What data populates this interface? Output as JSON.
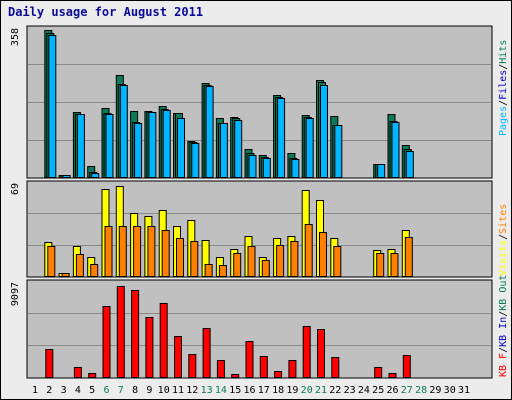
{
  "title": "Daily usage for August 2011",
  "colors": {
    "pages": "#00b4ff",
    "files": "#0a7a5a",
    "hits": "#0a7a5a",
    "visits": "#ffff00",
    "sites": "#ff8000",
    "kb_f": "#ff0000",
    "kb_in": "#0000c0",
    "kb_out": "#0a7a5a",
    "plot_bg": "#c0c0c0",
    "weekend_label": "#0a7a5a",
    "weekday_label": "#000000"
  },
  "chart_data": [
    {
      "type": "bar",
      "panel": "hits",
      "scale_label": "358",
      "legend": [
        {
          "text": "Pages",
          "color": "#00b4ff"
        },
        {
          "text": "Files",
          "color": "#0000c0"
        },
        {
          "text": "Hits",
          "color": "#0a7a5a"
        }
      ],
      "ylim": [
        0,
        358
      ],
      "series": [
        {
          "name": "Hits",
          "values": [
            0,
            358,
            8,
            160,
            30,
            170,
            250,
            163,
            163,
            175,
            158,
            90,
            230,
            145,
            148,
            70,
            55,
            200,
            60,
            152,
            238,
            150,
            0,
            0,
            35,
            155,
            80,
            0,
            0,
            0,
            0
          ]
        },
        {
          "name": "Files",
          "values": [
            0,
            350,
            7,
            155,
            14,
            157,
            228,
            136,
            160,
            168,
            157,
            86,
            225,
            134,
            144,
            60,
            50,
            197,
            48,
            147,
            232,
            128,
            0,
            0,
            35,
            137,
            69,
            0,
            0,
            0,
            0
          ]
        },
        {
          "name": "Pages",
          "values": [
            0,
            346,
            7,
            154,
            12,
            156,
            226,
            134,
            159,
            165,
            144,
            84,
            222,
            132,
            141,
            55,
            48,
            194,
            46,
            144,
            226,
            127,
            0,
            0,
            35,
            136,
            66,
            0,
            0,
            0,
            0
          ]
        }
      ]
    },
    {
      "type": "bar",
      "panel": "visits",
      "scale_label": "69",
      "legend": [
        {
          "text": "Visits",
          "color": "#ffff00"
        },
        {
          "text": "Sites",
          "color": "#ff8000"
        }
      ],
      "ylim": [
        0,
        69
      ],
      "series": [
        {
          "name": "Visits",
          "values": [
            0,
            26,
            3,
            23,
            15,
            66,
            68,
            48,
            46,
            50,
            38,
            43,
            28,
            15,
            21,
            31,
            15,
            29,
            31,
            65,
            58,
            29,
            0,
            0,
            20,
            21,
            35,
            0,
            0,
            0,
            0
          ]
        },
        {
          "name": "Sites",
          "values": [
            0,
            23,
            3,
            17,
            10,
            38,
            38,
            38,
            38,
            35,
            29,
            27,
            10,
            9,
            18,
            23,
            13,
            24,
            27,
            40,
            34,
            23,
            0,
            0,
            18,
            18,
            30,
            0,
            0,
            0,
            0
          ]
        }
      ]
    },
    {
      "type": "bar",
      "panel": "kbytes",
      "scale_label": "9097",
      "legend": [
        {
          "text": "KB F",
          "color": "#ff0000"
        },
        {
          "text": "KB In",
          "color": "#0000c0"
        },
        {
          "text": "KB Out",
          "color": "#0a7a5a"
        }
      ],
      "ylim": [
        0,
        9097
      ],
      "series": [
        {
          "name": "KB F",
          "values": [
            0,
            2850,
            0,
            1070,
            450,
            7100,
            9097,
            8750,
            6020,
            7450,
            4200,
            2400,
            4900,
            1800,
            420,
            3650,
            2200,
            650,
            1800,
            5150,
            4800,
            2100,
            0,
            0,
            1070,
            450,
            2230,
            0,
            0,
            0,
            0
          ]
        }
      ]
    }
  ],
  "x_labels": [
    "1",
    "2",
    "3",
    "4",
    "5",
    "6",
    "7",
    "8",
    "9",
    "10",
    "11",
    "12",
    "13",
    "14",
    "15",
    "16",
    "17",
    "18",
    "19",
    "20",
    "21",
    "22",
    "23",
    "24",
    "25",
    "26",
    "27",
    "28",
    "29",
    "30",
    "31"
  ],
  "weekend_days": [
    6,
    7,
    13,
    14,
    20,
    21,
    27,
    28
  ]
}
